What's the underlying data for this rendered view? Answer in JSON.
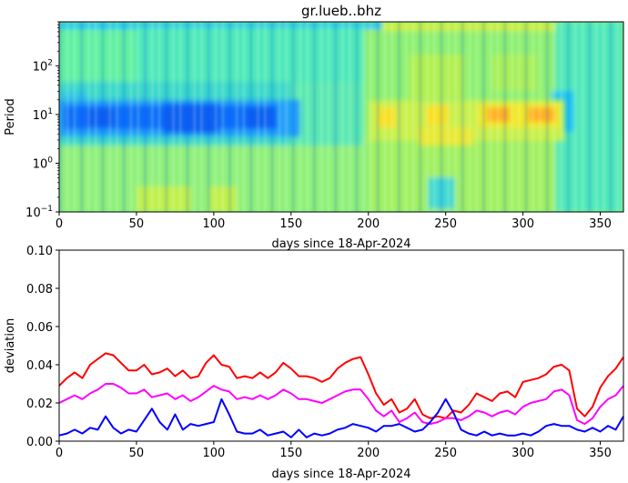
{
  "chart_data": [
    {
      "type": "heatmap",
      "title": "gr.lueb..bhz",
      "xlabel": "days since 18-Apr-2024",
      "ylabel": "Period",
      "xlim": [
        0,
        365
      ],
      "ylim": [
        0.1,
        800
      ],
      "y_scale": "log",
      "x_ticks": [
        "0",
        "50",
        "100",
        "150",
        "200",
        "250",
        "300",
        "350"
      ],
      "y_ticks": [
        {
          "base": "10",
          "exp": "−1"
        },
        {
          "base": "10",
          "exp": "0"
        },
        {
          "base": "10",
          "exp": "1"
        },
        {
          "base": "10",
          "exp": "2"
        }
      ],
      "colormap": "jet",
      "features": [
        {
          "x_range": [
            0,
            135
          ],
          "period_range": [
            4,
            20
          ],
          "level": "low (blue)"
        },
        {
          "x_range": [
            200,
            320
          ],
          "period_range": [
            5,
            15
          ],
          "level": "high (yellow/orange)"
        },
        {
          "x_range": [
            280,
            320
          ],
          "period_range": [
            8,
            12
          ],
          "level": "highest (orange)"
        }
      ]
    },
    {
      "type": "line",
      "xlabel": "days since 18-Apr-2024",
      "ylabel": "deviation",
      "xlim": [
        0,
        365
      ],
      "ylim": [
        0.0,
        0.1
      ],
      "x_ticks": [
        "0",
        "50",
        "100",
        "150",
        "200",
        "250",
        "300",
        "350"
      ],
      "y_ticks": [
        "0.00",
        "0.02",
        "0.04",
        "0.06",
        "0.08",
        "0.10"
      ],
      "grid": false,
      "x": [
        0,
        5,
        10,
        15,
        20,
        25,
        30,
        35,
        40,
        45,
        50,
        55,
        60,
        65,
        70,
        75,
        80,
        85,
        90,
        95,
        100,
        105,
        110,
        115,
        120,
        125,
        130,
        135,
        140,
        145,
        150,
        155,
        160,
        165,
        170,
        175,
        180,
        185,
        190,
        195,
        200,
        205,
        210,
        215,
        220,
        225,
        230,
        235,
        240,
        245,
        250,
        255,
        260,
        265,
        270,
        275,
        280,
        285,
        290,
        295,
        300,
        305,
        310,
        315,
        320,
        325,
        330,
        335,
        340,
        345,
        350,
        355,
        360,
        365
      ],
      "series": [
        {
          "color": "#ff0000",
          "values": [
            0.029,
            0.033,
            0.036,
            0.033,
            0.04,
            0.043,
            0.046,
            0.045,
            0.041,
            0.037,
            0.037,
            0.04,
            0.035,
            0.036,
            0.038,
            0.034,
            0.037,
            0.033,
            0.034,
            0.041,
            0.045,
            0.04,
            0.039,
            0.033,
            0.034,
            0.033,
            0.036,
            0.033,
            0.036,
            0.041,
            0.038,
            0.034,
            0.034,
            0.033,
            0.031,
            0.033,
            0.038,
            0.041,
            0.043,
            0.044,
            0.035,
            0.025,
            0.019,
            0.022,
            0.015,
            0.017,
            0.022,
            0.014,
            0.012,
            0.013,
            0.012,
            0.016,
            0.015,
            0.019,
            0.025,
            0.023,
            0.021,
            0.025,
            0.026,
            0.023,
            0.031,
            0.032,
            0.033,
            0.035,
            0.039,
            0.04,
            0.037,
            0.017,
            0.013,
            0.018,
            0.028,
            0.034,
            0.038,
            0.044
          ]
        },
        {
          "color": "#ff00ff",
          "values": [
            0.02,
            0.022,
            0.024,
            0.022,
            0.025,
            0.027,
            0.03,
            0.03,
            0.028,
            0.025,
            0.025,
            0.027,
            0.023,
            0.024,
            0.025,
            0.022,
            0.024,
            0.021,
            0.023,
            0.026,
            0.029,
            0.027,
            0.026,
            0.022,
            0.023,
            0.022,
            0.024,
            0.022,
            0.024,
            0.027,
            0.025,
            0.022,
            0.022,
            0.021,
            0.02,
            0.022,
            0.024,
            0.026,
            0.027,
            0.027,
            0.022,
            0.016,
            0.013,
            0.016,
            0.01,
            0.012,
            0.015,
            0.01,
            0.009,
            0.01,
            0.012,
            0.012,
            0.011,
            0.013,
            0.016,
            0.015,
            0.013,
            0.015,
            0.016,
            0.014,
            0.018,
            0.02,
            0.021,
            0.022,
            0.026,
            0.027,
            0.024,
            0.011,
            0.009,
            0.012,
            0.018,
            0.022,
            0.024,
            0.029
          ]
        },
        {
          "color": "#0000ff",
          "values": [
            0.003,
            0.004,
            0.006,
            0.004,
            0.007,
            0.006,
            0.013,
            0.007,
            0.004,
            0.006,
            0.005,
            0.011,
            0.017,
            0.01,
            0.006,
            0.014,
            0.006,
            0.009,
            0.008,
            0.009,
            0.01,
            0.022,
            0.014,
            0.005,
            0.004,
            0.004,
            0.006,
            0.003,
            0.004,
            0.005,
            0.002,
            0.006,
            0.002,
            0.004,
            0.003,
            0.004,
            0.006,
            0.007,
            0.009,
            0.008,
            0.007,
            0.005,
            0.008,
            0.008,
            0.009,
            0.007,
            0.005,
            0.006,
            0.01,
            0.015,
            0.022,
            0.015,
            0.006,
            0.004,
            0.003,
            0.005,
            0.003,
            0.004,
            0.003,
            0.003,
            0.004,
            0.003,
            0.005,
            0.008,
            0.009,
            0.008,
            0.008,
            0.006,
            0.005,
            0.007,
            0.005,
            0.008,
            0.006,
            0.013
          ]
        }
      ]
    }
  ]
}
